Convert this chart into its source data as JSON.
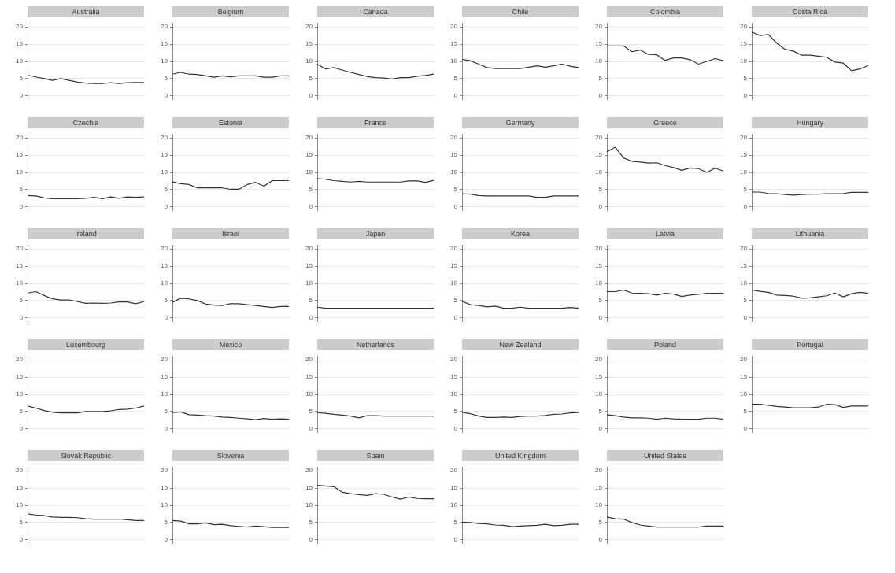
{
  "chart_data": [
    {
      "type": "line",
      "title": "Australia",
      "categories": [
        null,
        null,
        null,
        null,
        null,
        null,
        null,
        null,
        null,
        null,
        null,
        null,
        null,
        null,
        null
      ],
      "values": [
        6,
        5.5,
        5,
        4.5,
        5,
        4.5,
        4,
        3.7,
        3.6,
        3.6,
        3.8,
        3.6,
        3.8,
        3.9,
        3.9
      ],
      "color": "#333333",
      "ylim": [
        -1,
        21
      ],
      "yticks": [
        0,
        5,
        10,
        15,
        20
      ],
      "grid": "y",
      "tick_labels": "y"
    },
    {
      "type": "line",
      "title": "Belgium",
      "categories": [
        null,
        null,
        null,
        null,
        null,
        null,
        null,
        null,
        null,
        null,
        null,
        null,
        null,
        null,
        null
      ],
      "values": [
        6.3,
        6.8,
        6.3,
        6.2,
        5.8,
        5.4,
        5.8,
        5.5,
        5.8,
        5.8,
        5.8,
        5.4,
        5.4,
        5.8,
        5.8
      ],
      "color": "#333333",
      "ylim": [
        -1,
        21
      ],
      "yticks": [
        0,
        5,
        10,
        15,
        20
      ],
      "grid": "y",
      "tick_labels": "y"
    },
    {
      "type": "line",
      "title": "Canada",
      "categories": [
        null,
        null,
        null,
        null,
        null,
        null,
        null,
        null,
        null,
        null,
        null,
        null,
        null,
        null,
        null
      ],
      "values": [
        9.2,
        7.8,
        8.2,
        7.5,
        6.8,
        6.2,
        5.6,
        5.3,
        5.2,
        4.9,
        5.3,
        5.3,
        5.7,
        5.9,
        6.3
      ],
      "color": "#333333",
      "ylim": [
        -1,
        21
      ],
      "yticks": [
        0,
        5,
        10,
        15,
        20
      ],
      "grid": "y",
      "tick_labels": "y"
    },
    {
      "type": "line",
      "title": "Chile",
      "categories": [
        null,
        null,
        null,
        null,
        null,
        null,
        null,
        null,
        null,
        null,
        null,
        null,
        null,
        null,
        null
      ],
      "values": [
        10.6,
        10.2,
        9.2,
        8.2,
        7.9,
        7.9,
        7.9,
        7.9,
        8.3,
        8.7,
        8.3,
        8.7,
        9.2,
        8.6,
        8.2
      ],
      "color": "#333333",
      "ylim": [
        -1,
        21
      ],
      "yticks": [
        0,
        5,
        10,
        15,
        20
      ],
      "grid": "y",
      "tick_labels": "y"
    },
    {
      "type": "line",
      "title": "Colombia",
      "categories": [
        null,
        null,
        null,
        null,
        null,
        null,
        null,
        null,
        null,
        null,
        null,
        null,
        null,
        null,
        null
      ],
      "values": [
        14.5,
        14.5,
        14.5,
        12.8,
        13.3,
        12,
        11.9,
        10.3,
        11,
        11,
        10.5,
        9.2,
        10,
        10.8,
        10.2
      ],
      "color": "#333333",
      "ylim": [
        -1,
        21
      ],
      "yticks": [
        0,
        5,
        10,
        15,
        20
      ],
      "grid": "y",
      "tick_labels": "y"
    },
    {
      "type": "line",
      "title": "Costa Rica",
      "categories": [
        null,
        null,
        null,
        null,
        null,
        null,
        null,
        null,
        null,
        null,
        null,
        null,
        null,
        null,
        null
      ],
      "values": [
        18.5,
        17.5,
        17.8,
        15.3,
        13.5,
        13,
        11.8,
        11.8,
        11.5,
        11.2,
        9.8,
        9.5,
        7.3,
        7.8,
        8.8
      ],
      "color": "#333333",
      "ylim": [
        -1,
        21
      ],
      "yticks": [
        0,
        5,
        10,
        15,
        20
      ],
      "grid": "y",
      "tick_labels": "y"
    },
    {
      "type": "line",
      "title": "Czechia",
      "categories": [
        null,
        null,
        null,
        null,
        null,
        null,
        null,
        null,
        null,
        null,
        null,
        null,
        null,
        null,
        null
      ],
      "values": [
        3.3,
        3.2,
        2.6,
        2.4,
        2.4,
        2.4,
        2.4,
        2.5,
        2.8,
        2.4,
        2.9,
        2.5,
        2.9,
        2.8,
        2.9
      ],
      "color": "#333333",
      "ylim": [
        -1,
        21
      ],
      "yticks": [
        0,
        5,
        10,
        15,
        20
      ],
      "grid": "y",
      "tick_labels": "y"
    },
    {
      "type": "line",
      "title": "Estonia",
      "categories": [
        null,
        null,
        null,
        null,
        null,
        null,
        null,
        null,
        null,
        null,
        null,
        null,
        null,
        null,
        null
      ],
      "values": [
        7.3,
        6.7,
        6.5,
        5.5,
        5.5,
        5.5,
        5.5,
        5.1,
        5.1,
        6.5,
        7.1,
        6,
        7.6,
        7.6,
        7.6
      ],
      "color": "#333333",
      "ylim": [
        -1,
        21
      ],
      "yticks": [
        0,
        5,
        10,
        15,
        20
      ],
      "grid": "y",
      "tick_labels": "y"
    },
    {
      "type": "line",
      "title": "France",
      "categories": [
        null,
        null,
        null,
        null,
        null,
        null,
        null,
        null,
        null,
        null,
        null,
        null,
        null,
        null,
        null
      ],
      "values": [
        8.2,
        8,
        7.6,
        7.4,
        7.2,
        7.4,
        7.2,
        7.2,
        7.2,
        7.2,
        7.2,
        7.5,
        7.5,
        7.1,
        7.7
      ],
      "color": "#333333",
      "ylim": [
        -1,
        21
      ],
      "yticks": [
        0,
        5,
        10,
        15,
        20
      ],
      "grid": "y",
      "tick_labels": "y"
    },
    {
      "type": "line",
      "title": "Germany",
      "categories": [
        null,
        null,
        null,
        null,
        null,
        null,
        null,
        null,
        null,
        null,
        null,
        null,
        null,
        null,
        null
      ],
      "values": [
        3.8,
        3.7,
        3.3,
        3.2,
        3.2,
        3.2,
        3.2,
        3.2,
        3.2,
        2.8,
        2.8,
        3.2,
        3.2,
        3.2,
        3.2
      ],
      "color": "#333333",
      "ylim": [
        -1,
        21
      ],
      "yticks": [
        0,
        5,
        10,
        15,
        20
      ],
      "grid": "y",
      "tick_labels": "y"
    },
    {
      "type": "line",
      "title": "Greece",
      "categories": [
        null,
        null,
        null,
        null,
        null,
        null,
        null,
        null,
        null,
        null,
        null,
        null,
        null,
        null,
        null
      ],
      "values": [
        16,
        17.3,
        14.2,
        13.2,
        13,
        12.7,
        12.8,
        12,
        11.4,
        10.6,
        11.3,
        11.1,
        10,
        11.2,
        10.4
      ],
      "color": "#333333",
      "ylim": [
        -1,
        21
      ],
      "yticks": [
        0,
        5,
        10,
        15,
        20
      ],
      "grid": "y",
      "tick_labels": "y"
    },
    {
      "type": "line",
      "title": "Hungary",
      "categories": [
        null,
        null,
        null,
        null,
        null,
        null,
        null,
        null,
        null,
        null,
        null,
        null,
        null,
        null,
        null
      ],
      "values": [
        4.3,
        4.3,
        3.9,
        3.8,
        3.6,
        3.4,
        3.6,
        3.7,
        3.7,
        3.8,
        3.8,
        3.9,
        4.2,
        4.2,
        4.2
      ],
      "color": "#333333",
      "ylim": [
        -1,
        21
      ],
      "yticks": [
        0,
        5,
        10,
        15,
        20
      ],
      "grid": "y",
      "tick_labels": "y"
    },
    {
      "type": "line",
      "title": "Ireland",
      "categories": [
        null,
        null,
        null,
        null,
        null,
        null,
        null,
        null,
        null,
        null,
        null,
        null,
        null,
        null,
        null
      ],
      "values": [
        7.2,
        7.6,
        6.5,
        5.5,
        5.2,
        5.2,
        4.7,
        4.2,
        4.3,
        4.2,
        4.3,
        4.6,
        4.6,
        4.1,
        4.7
      ],
      "color": "#333333",
      "ylim": [
        -1,
        21
      ],
      "yticks": [
        0,
        5,
        10,
        15,
        20
      ],
      "grid": "y",
      "tick_labels": "y"
    },
    {
      "type": "line",
      "title": "Israel",
      "categories": [
        null,
        null,
        null,
        null,
        null,
        null,
        null,
        null,
        null,
        null,
        null,
        null,
        null,
        null,
        null
      ],
      "values": [
        4.5,
        5.7,
        5.5,
        5,
        4,
        3.7,
        3.6,
        4.1,
        4.1,
        3.8,
        3.6,
        3.3,
        3,
        3.3,
        3.3
      ],
      "color": "#333333",
      "ylim": [
        -1,
        21
      ],
      "yticks": [
        0,
        5,
        10,
        15,
        20
      ],
      "grid": "y",
      "tick_labels": "y"
    },
    {
      "type": "line",
      "title": "Japan",
      "categories": [
        null,
        null,
        null,
        null,
        null,
        null,
        null,
        null,
        null,
        null,
        null,
        null,
        null,
        null,
        null
      ],
      "values": [
        3.1,
        2.8,
        2.8,
        2.8,
        2.8,
        2.8,
        2.8,
        2.8,
        2.8,
        2.8,
        2.8,
        2.8,
        2.8,
        2.8,
        2.8
      ],
      "color": "#333333",
      "ylim": [
        -1,
        21
      ],
      "yticks": [
        0,
        5,
        10,
        15,
        20
      ],
      "grid": "y",
      "tick_labels": "y"
    },
    {
      "type": "line",
      "title": "Korea",
      "categories": [
        null,
        null,
        null,
        null,
        null,
        null,
        null,
        null,
        null,
        null,
        null,
        null,
        null,
        null,
        null
      ],
      "values": [
        4.8,
        3.8,
        3.6,
        3.2,
        3.4,
        2.8,
        2.8,
        3.1,
        2.8,
        2.8,
        2.8,
        2.8,
        2.8,
        3,
        2.8
      ],
      "color": "#333333",
      "ylim": [
        -1,
        21
      ],
      "yticks": [
        0,
        5,
        10,
        15,
        20
      ],
      "grid": "y",
      "tick_labels": "y"
    },
    {
      "type": "line",
      "title": "Latvia",
      "categories": [
        null,
        null,
        null,
        null,
        null,
        null,
        null,
        null,
        null,
        null,
        null,
        null,
        null,
        null,
        null
      ],
      "values": [
        7.6,
        7.6,
        8.1,
        7.2,
        7.1,
        7,
        6.6,
        7.1,
        6.9,
        6.2,
        6.6,
        6.8,
        7.1,
        7.1,
        7.1
      ],
      "color": "#333333",
      "ylim": [
        -1,
        21
      ],
      "yticks": [
        0,
        5,
        10,
        15,
        20
      ],
      "grid": "y",
      "tick_labels": "y"
    },
    {
      "type": "line",
      "title": "Lithuania",
      "categories": [
        null,
        null,
        null,
        null,
        null,
        null,
        null,
        null,
        null,
        null,
        null,
        null,
        null,
        null,
        null
      ],
      "values": [
        8.1,
        7.7,
        7.4,
        6.6,
        6.5,
        6.3,
        5.7,
        5.8,
        6.1,
        6.4,
        7.2,
        6.1,
        7,
        7.4,
        7.1
      ],
      "color": "#333333",
      "ylim": [
        -1,
        21
      ],
      "yticks": [
        0,
        5,
        10,
        15,
        20
      ],
      "grid": "y",
      "tick_labels": "y"
    },
    {
      "type": "line",
      "title": "Luxembourg",
      "categories": [
        null,
        null,
        null,
        null,
        null,
        null,
        null,
        null,
        null,
        null,
        null,
        null,
        null,
        null,
        null
      ],
      "values": [
        6.6,
        6,
        5.3,
        4.8,
        4.6,
        4.6,
        4.6,
        5,
        5,
        5,
        5.2,
        5.6,
        5.7,
        6,
        6.6
      ],
      "color": "#333333",
      "ylim": [
        -1,
        21
      ],
      "yticks": [
        0,
        5,
        10,
        15,
        20
      ],
      "grid": "y",
      "tick_labels": "y"
    },
    {
      "type": "line",
      "title": "Mexico",
      "categories": [
        null,
        null,
        null,
        null,
        null,
        null,
        null,
        null,
        null,
        null,
        null,
        null,
        null,
        null,
        null
      ],
      "values": [
        4.7,
        4.9,
        4.1,
        4,
        3.8,
        3.7,
        3.4,
        3.3,
        3.1,
        2.9,
        2.7,
        3,
        2.8,
        2.9,
        2.8
      ],
      "color": "#333333",
      "ylim": [
        -1,
        21
      ],
      "yticks": [
        0,
        5,
        10,
        15,
        20
      ],
      "grid": "y",
      "tick_labels": "y"
    },
    {
      "type": "line",
      "title": "Netherlands",
      "categories": [
        null,
        null,
        null,
        null,
        null,
        null,
        null,
        null,
        null,
        null,
        null,
        null,
        null,
        null,
        null
      ],
      "values": [
        4.7,
        4.5,
        4.2,
        4,
        3.7,
        3.2,
        3.8,
        3.8,
        3.7,
        3.7,
        3.7,
        3.7,
        3.7,
        3.7,
        3.7
      ],
      "color": "#333333",
      "ylim": [
        -1,
        21
      ],
      "yticks": [
        0,
        5,
        10,
        15,
        20
      ],
      "grid": "y",
      "tick_labels": "y"
    },
    {
      "type": "line",
      "title": "New Zealand",
      "categories": [
        null,
        null,
        null,
        null,
        null,
        null,
        null,
        null,
        null,
        null,
        null,
        null,
        null,
        null,
        null
      ],
      "values": [
        4.8,
        4.4,
        3.7,
        3.3,
        3.3,
        3.4,
        3.3,
        3.6,
        3.7,
        3.7,
        3.9,
        4.2,
        4.3,
        4.6,
        4.7
      ],
      "color": "#333333",
      "ylim": [
        -1,
        21
      ],
      "yticks": [
        0,
        5,
        10,
        15,
        20
      ],
      "grid": "y",
      "tick_labels": "y"
    },
    {
      "type": "line",
      "title": "Poland",
      "categories": [
        null,
        null,
        null,
        null,
        null,
        null,
        null,
        null,
        null,
        null,
        null,
        null,
        null,
        null,
        null
      ],
      "values": [
        4.1,
        3.8,
        3.4,
        3.2,
        3.2,
        3.1,
        2.8,
        3.1,
        2.9,
        2.8,
        2.8,
        2.8,
        3.1,
        3.1,
        2.8
      ],
      "color": "#333333",
      "ylim": [
        -1,
        21
      ],
      "yticks": [
        0,
        5,
        10,
        15,
        20
      ],
      "grid": "y",
      "tick_labels": "y"
    },
    {
      "type": "line",
      "title": "Portugal",
      "categories": [
        null,
        null,
        null,
        null,
        null,
        null,
        null,
        null,
        null,
        null,
        null,
        null,
        null,
        null,
        null
      ],
      "values": [
        7.1,
        7.1,
        6.8,
        6.5,
        6.3,
        6.1,
        6.1,
        6.1,
        6.3,
        7.1,
        7,
        6.2,
        6.6,
        6.6,
        6.6
      ],
      "color": "#333333",
      "ylim": [
        -1,
        21
      ],
      "yticks": [
        0,
        5,
        10,
        15,
        20
      ],
      "grid": "y",
      "tick_labels": "y"
    },
    {
      "type": "line",
      "title": "Slovak Republic",
      "categories": [
        null,
        null,
        null,
        null,
        null,
        null,
        null,
        null,
        null,
        null,
        null,
        null,
        null,
        null,
        null
      ],
      "values": [
        7.5,
        7.2,
        7,
        6.6,
        6.5,
        6.5,
        6.4,
        6.1,
        6,
        6,
        6,
        6,
        5.8,
        5.6,
        5.6
      ],
      "color": "#333333",
      "ylim": [
        -1,
        21
      ],
      "yticks": [
        0,
        5,
        10,
        15,
        20
      ],
      "grid": "y",
      "tick_labels": "y"
    },
    {
      "type": "line",
      "title": "Slovenia",
      "categories": [
        null,
        null,
        null,
        null,
        null,
        null,
        null,
        null,
        null,
        null,
        null,
        null,
        null,
        null,
        null
      ],
      "values": [
        5.6,
        5.4,
        4.6,
        4.6,
        4.9,
        4.4,
        4.5,
        4.1,
        3.9,
        3.7,
        4,
        3.8,
        3.6,
        3.6,
        3.6
      ],
      "color": "#333333",
      "ylim": [
        -1,
        21
      ],
      "yticks": [
        0,
        5,
        10,
        15,
        20
      ],
      "grid": "y",
      "tick_labels": "y"
    },
    {
      "type": "line",
      "title": "Spain",
      "categories": [
        null,
        null,
        null,
        null,
        null,
        null,
        null,
        null,
        null,
        null,
        null,
        null,
        null,
        null,
        null
      ],
      "values": [
        15.8,
        15.6,
        15.4,
        13.8,
        13.4,
        13.1,
        12.9,
        13.4,
        13.2,
        12.4,
        11.8,
        12.4,
        12,
        11.9,
        11.9
      ],
      "color": "#333333",
      "ylim": [
        -1,
        21
      ],
      "yticks": [
        0,
        5,
        10,
        15,
        20
      ],
      "grid": "y",
      "tick_labels": "y"
    },
    {
      "type": "line",
      "title": "United Kingdom",
      "categories": [
        null,
        null,
        null,
        null,
        null,
        null,
        null,
        null,
        null,
        null,
        null,
        null,
        null,
        null,
        null
      ],
      "values": [
        5.1,
        5,
        4.7,
        4.6,
        4.3,
        4.2,
        3.8,
        4,
        4.1,
        4.2,
        4.5,
        4.1,
        4.2,
        4.5,
        4.5
      ],
      "color": "#333333",
      "ylim": [
        -1,
        21
      ],
      "yticks": [
        0,
        5,
        10,
        15,
        20
      ],
      "grid": "y",
      "tick_labels": "y"
    },
    {
      "type": "line",
      "title": "United States",
      "categories": [
        null,
        null,
        null,
        null,
        null,
        null,
        null,
        null,
        null,
        null,
        null,
        null,
        null,
        null,
        null
      ],
      "values": [
        6.6,
        6.1,
        6,
        5,
        4.3,
        4,
        3.7,
        3.7,
        3.7,
        3.7,
        3.7,
        3.7,
        4,
        4,
        4
      ],
      "color": "#333333",
      "ylim": [
        -1,
        21
      ],
      "yticks": [
        0,
        5,
        10,
        15,
        20
      ],
      "grid": "y",
      "tick_labels": "y"
    }
  ]
}
